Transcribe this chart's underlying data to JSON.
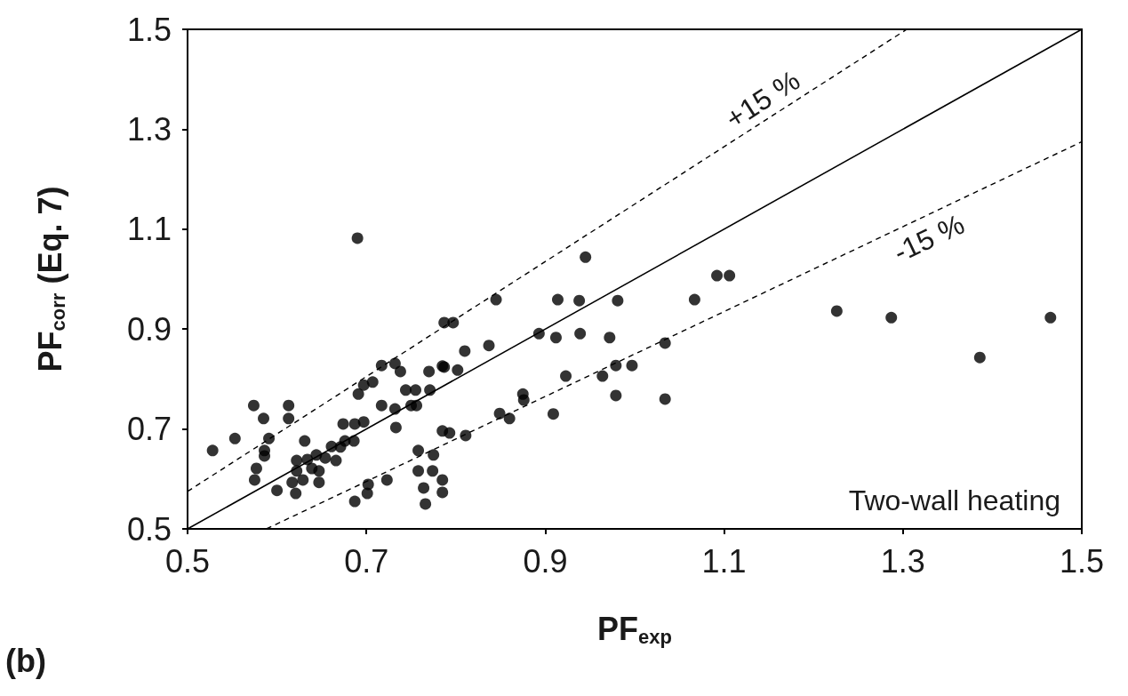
{
  "chart_data": {
    "type": "scatter",
    "xlabel": "PF$_{exp}$",
    "ylabel": "PF$_{corr}$ (Eq. 7)",
    "xlim": [
      0.5,
      1.5
    ],
    "ylim": [
      0.5,
      1.5
    ],
    "xticks": [
      0.5,
      0.7,
      0.9,
      1.1,
      1.3,
      1.5
    ],
    "yticks": [
      0.5,
      0.7,
      0.9,
      1.1,
      1.3,
      1.5
    ],
    "grid": false,
    "marker": "circle",
    "annotations": [
      "+15 %",
      "-15 %",
      "Two-wall heating",
      "(b)"
    ],
    "series": [
      {
        "color": "#000000",
        "x": [
          0.528,
          0.553,
          0.574,
          0.585,
          0.591,
          0.586,
          0.586,
          0.577,
          0.575,
          0.613,
          0.613,
          0.6,
          0.631,
          0.622,
          0.622,
          0.617,
          0.621,
          0.629,
          0.634,
          0.639,
          0.644,
          0.647,
          0.647,
          0.654,
          0.661,
          0.666,
          0.671,
          0.676,
          0.686,
          0.674,
          0.687,
          0.697,
          0.691,
          0.697,
          0.707,
          0.717,
          0.732,
          0.738,
          0.717,
          0.732,
          0.733,
          0.744,
          0.755,
          0.75,
          0.756,
          0.77,
          0.771,
          0.785,
          0.802,
          0.81,
          0.785,
          0.793,
          0.811,
          0.758,
          0.775,
          0.758,
          0.774,
          0.785,
          0.785,
          0.764,
          0.766,
          0.687,
          0.701,
          0.702,
          0.723,
          0.69,
          0.945,
          0.845,
          0.914,
          0.938,
          0.981,
          1.067,
          1.092,
          1.106,
          0.787,
          0.797,
          0.893,
          0.912,
          0.939,
          0.972,
          0.837,
          0.787,
          0.923,
          0.964,
          0.979,
          0.997,
          1.034,
          0.979,
          1.034,
          0.875,
          0.876,
          0.849,
          0.86,
          0.909,
          1.226,
          1.287,
          1.386,
          1.465
        ],
        "values": [
          0.657,
          0.681,
          0.747,
          0.721,
          0.681,
          0.657,
          0.646,
          0.621,
          0.598,
          0.747,
          0.721,
          0.577,
          0.676,
          0.637,
          0.616,
          0.593,
          0.571,
          0.598,
          0.639,
          0.621,
          0.648,
          0.616,
          0.593,
          0.642,
          0.665,
          0.637,
          0.664,
          0.676,
          0.676,
          0.71,
          0.71,
          0.714,
          0.77,
          0.788,
          0.794,
          0.827,
          0.831,
          0.815,
          0.747,
          0.74,
          0.703,
          0.778,
          0.778,
          0.747,
          0.747,
          0.815,
          0.778,
          0.826,
          0.818,
          0.856,
          0.696,
          0.692,
          0.687,
          0.657,
          0.648,
          0.616,
          0.616,
          0.598,
          0.573,
          0.582,
          0.55,
          0.555,
          0.571,
          0.589,
          0.598,
          1.082,
          1.044,
          0.959,
          0.959,
          0.957,
          0.957,
          0.959,
          1.007,
          1.007,
          0.913,
          0.913,
          0.891,
          0.883,
          0.891,
          0.883,
          0.867,
          0.824,
          0.806,
          0.806,
          0.827,
          0.827,
          0.872,
          0.767,
          0.76,
          0.77,
          0.758,
          0.731,
          0.721,
          0.73,
          0.936,
          0.923,
          0.843,
          0.923
        ]
      },
      {
        "type": "line",
        "color": "#000000",
        "line_style": "solid",
        "marker": "none",
        "x": [
          0.5,
          1.5
        ],
        "values": [
          0.5,
          1.5
        ]
      },
      {
        "type": "line",
        "color": "#000000",
        "line_style": "dashed",
        "marker": "none",
        "x": [
          0.5,
          1.3043
        ],
        "values": [
          0.575,
          1.5
        ]
      },
      {
        "type": "line",
        "color": "#000000",
        "line_style": "dashed",
        "marker": "none",
        "x": [
          0.5882,
          1.5
        ],
        "values": [
          0.5,
          1.275
        ]
      }
    ]
  }
}
